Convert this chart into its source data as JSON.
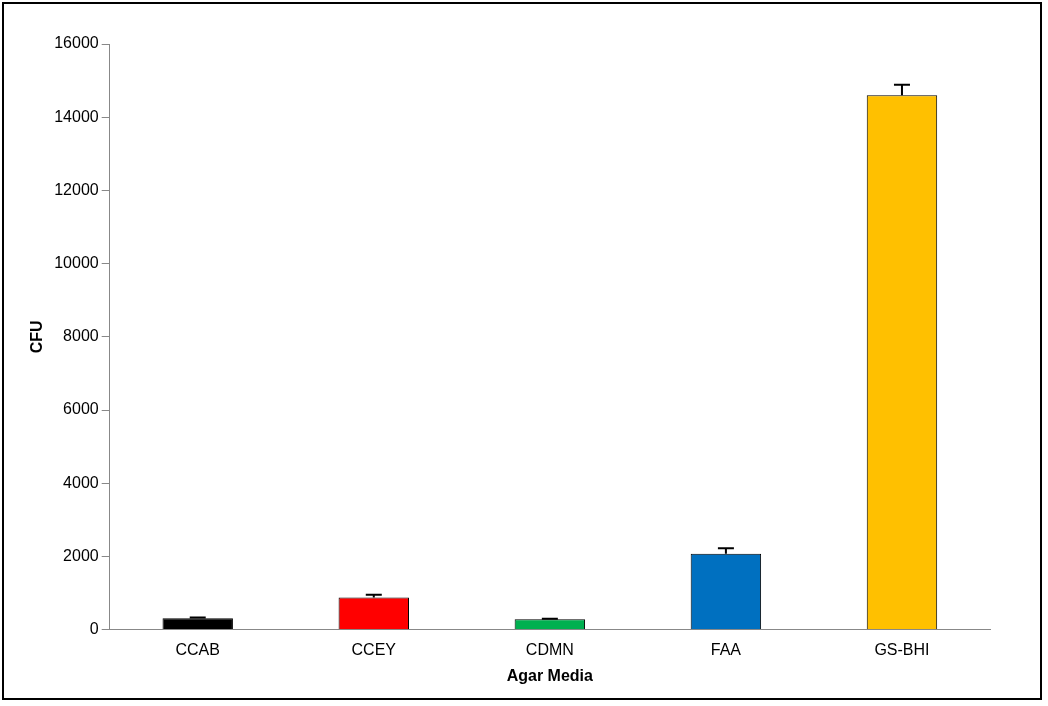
{
  "chart_data": {
    "type": "bar",
    "xlabel": "Agar Media",
    "ylabel": "CFU",
    "categories": [
      "CCAB",
      "CCEY",
      "CDMN",
      "FAA",
      "GS-BHI"
    ],
    "values": [
      310,
      880,
      280,
      2070,
      14600
    ],
    "errors": [
      20,
      70,
      15,
      150,
      290
    ],
    "colors": [
      "#000000",
      "#ff0000",
      "#00b050",
      "#0070c0",
      "#ffc000"
    ],
    "ylim": [
      0,
      16000
    ],
    "yticks": [
      0,
      2000,
      4000,
      6000,
      8000,
      10000,
      12000,
      14000,
      16000
    ],
    "grid": false,
    "legend": false
  }
}
